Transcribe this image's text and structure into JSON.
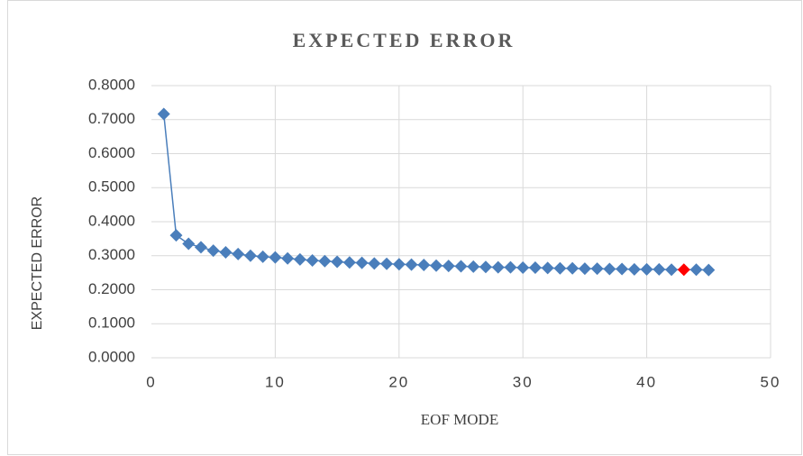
{
  "chart_data": {
    "type": "line",
    "title": "EXPECTED ERROR",
    "x_label": "EOF MODE",
    "y_label": "EXPECTED ERROR",
    "x": [
      1,
      2,
      3,
      4,
      5,
      6,
      7,
      8,
      9,
      10,
      11,
      12,
      13,
      14,
      15,
      16,
      17,
      18,
      19,
      20,
      21,
      22,
      23,
      24,
      25,
      26,
      27,
      28,
      29,
      30,
      31,
      32,
      33,
      34,
      35,
      36,
      37,
      38,
      39,
      40,
      41,
      42,
      43,
      44,
      45
    ],
    "values": [
      0.7166,
      0.36,
      0.335,
      0.325,
      0.315,
      0.31,
      0.305,
      0.3,
      0.297,
      0.295,
      0.292,
      0.289,
      0.286,
      0.284,
      0.282,
      0.28,
      0.279,
      0.277,
      0.276,
      0.275,
      0.274,
      0.273,
      0.271,
      0.27,
      0.269,
      0.268,
      0.267,
      0.266,
      0.266,
      0.265,
      0.265,
      0.264,
      0.263,
      0.263,
      0.262,
      0.262,
      0.261,
      0.261,
      0.26,
      0.26,
      0.26,
      0.259,
      0.259,
      0.259,
      0.258
    ],
    "color": "#4a7ebb",
    "highlight_x": 43,
    "highlight_color": "#ff0000",
    "xlim": [
      0,
      50
    ],
    "xticks": [
      0,
      10,
      20,
      30,
      40,
      50
    ],
    "ylim": [
      0,
      0.8
    ],
    "yticks": [
      {
        "value": 0,
        "label": "0.0000"
      },
      {
        "value": 0.1,
        "label": "0.1000"
      },
      {
        "value": 0.2,
        "label": "0.2000"
      },
      {
        "value": 0.3,
        "label": "0.3000"
      },
      {
        "value": 0.4,
        "label": "0.4000"
      },
      {
        "value": 0.5,
        "label": "0.5000"
      },
      {
        "value": 0.6,
        "label": "0.6000"
      },
      {
        "value": 0.7,
        "label": "0.7000"
      },
      {
        "value": 0.8,
        "label": "0.8000"
      }
    ],
    "grid": true
  }
}
